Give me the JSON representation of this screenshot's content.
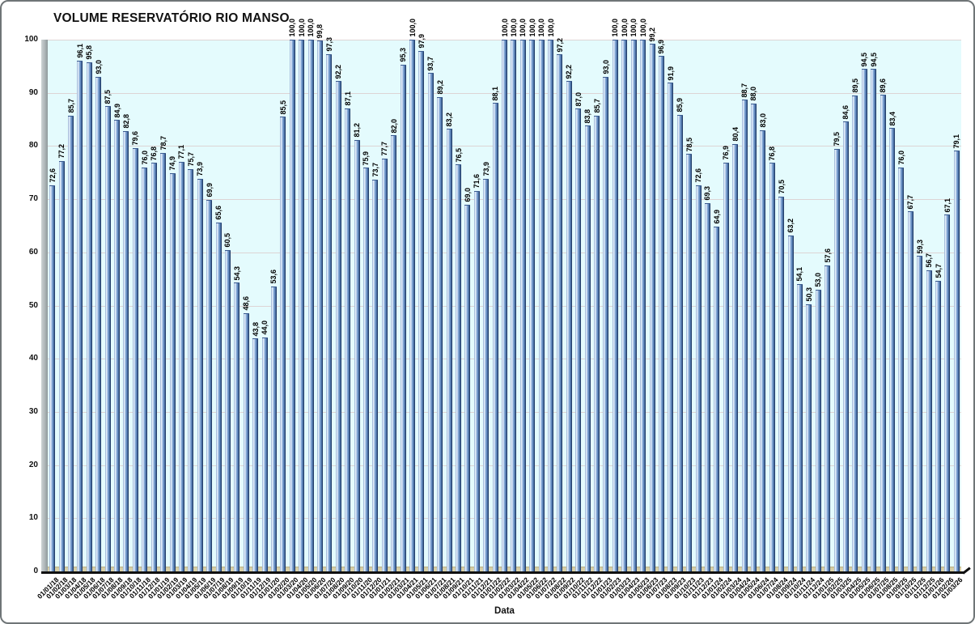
{
  "title": "VOLUME RESERVATÓRIO RIO MANSO",
  "chart_data": {
    "type": "bar",
    "title": "VOLUME RESERVATÓRIO RIO MANSO",
    "xlabel": "Data",
    "ylabel": "",
    "ylim": [
      0,
      100
    ],
    "yticks": [
      0,
      10,
      20,
      30,
      40,
      50,
      60,
      70,
      80,
      90,
      100
    ],
    "grid": true,
    "legend": "none",
    "decimal_separator": ",",
    "plot_bg": "#e4fbfd",
    "bar_color_main": "#7097ca",
    "bar_color_dark": "#1f3864",
    "bar_color_light": "#eef5fc",
    "wall_color": "#aeb6b8",
    "floor_color": "#d8d0a6",
    "gridline_color": "#ddd4d4",
    "categories": [
      "01/01/18",
      "01/02/18",
      "01/03/18",
      "01/04/18",
      "01/05/18",
      "01/06/18",
      "01/07/18",
      "01/08/18",
      "01/09/18",
      "01/10/18",
      "01/11/18",
      "01/12/18",
      "01/01/19",
      "01/02/19",
      "01/03/19",
      "01/04/19",
      "01/05/19",
      "01/06/19",
      "01/07/19",
      "01/08/19",
      "01/09/19",
      "01/10/19",
      "01/11/19",
      "01/12/19",
      "01/01/20",
      "01/02/20",
      "01/03/20",
      "01/04/20",
      "01/05/20",
      "01/06/20",
      "01/07/20",
      "01/08/20",
      "01/09/20",
      "01/10/20",
      "01/11/20",
      "01/12/20",
      "01/01/21",
      "01/02/21",
      "01/03/21",
      "01/04/21",
      "01/05/21",
      "01/06/21",
      "01/07/21",
      "01/08/21",
      "01/09/21",
      "01/10/21",
      "01/11/21",
      "01/12/21",
      "01/01/22",
      "01/02/22",
      "01/03/22",
      "01/04/22",
      "01/05/22",
      "01/06/22",
      "01/07/22",
      "01/08/22",
      "01/09/22",
      "01/10/22",
      "01/11/22",
      "01/12/22",
      "01/01/23",
      "01/02/23",
      "01/03/23",
      "01/04/23",
      "01/05/23",
      "01/06/23",
      "01/07/23",
      "01/08/23",
      "01/09/23",
      "01/10/23",
      "01/11/23",
      "01/12/23",
      "01/01/24",
      "01/02/24",
      "01/03/24",
      "01/04/24",
      "01/05/24",
      "01/06/24",
      "01/07/24",
      "01/08/24",
      "01/09/24",
      "01/10/24",
      "01/11/24",
      "01/12/24",
      "01/01/25",
      "01/02/25",
      "01/03/25",
      "01/04/25",
      "01/05/25",
      "01/06/25",
      "01/07/25",
      "01/08/25",
      "01/09/25",
      "01/10/25",
      "01/11/25",
      "01/12/25",
      "01/01/26",
      "01/02/26",
      "01/03/26"
    ],
    "values": [
      72.6,
      77.2,
      85.7,
      96.1,
      95.8,
      93.0,
      87.5,
      84.9,
      82.8,
      79.6,
      76.0,
      76.8,
      78.7,
      74.9,
      77.1,
      75.7,
      73.9,
      69.9,
      65.6,
      60.5,
      54.3,
      48.6,
      43.8,
      44.0,
      53.6,
      85.5,
      100.0,
      100.0,
      100.0,
      99.8,
      97.3,
      92.2,
      87.1,
      81.2,
      75.9,
      73.7,
      77.7,
      82.0,
      95.3,
      100.0,
      97.9,
      93.7,
      89.2,
      83.2,
      76.5,
      69.0,
      71.6,
      73.9,
      88.1,
      100.0,
      100.0,
      100.0,
      100.0,
      100.0,
      100.0,
      97.2,
      92.2,
      87.0,
      83.8,
      85.7,
      93.0,
      100.0,
      100.0,
      100.0,
      100.0,
      99.2,
      96.9,
      91.9,
      85.9,
      78.5,
      72.6,
      69.3,
      64.9,
      76.9,
      80.4,
      88.7,
      88.0,
      83.0,
      76.8,
      70.5,
      63.2,
      54.1,
      50.3,
      53.0,
      57.6,
      79.5,
      84.6,
      89.5,
      94.5,
      94.5,
      89.6,
      83.4,
      76.0,
      67.7,
      59.3,
      56.7,
      54.7,
      67.1,
      79.1
    ]
  }
}
